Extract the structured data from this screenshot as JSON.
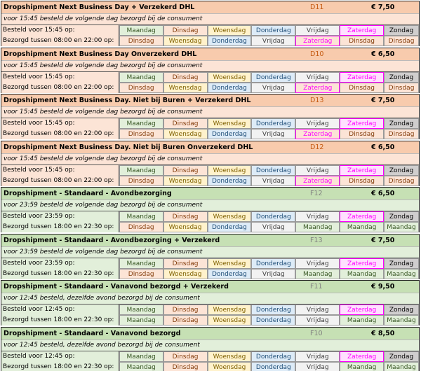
{
  "colors": {
    "orange_header": "#f8cbad",
    "orange_body": "#fce4d6",
    "green_header": "#c6e0b4",
    "green_body": "#e2efda",
    "zaterdag": "#ff00ff"
  },
  "blocks": [
    {
      "theme": "orange",
      "title": "Dropshipment Next Business Day + Verzekerd DHL",
      "code": "D11",
      "price": "€ 7,50",
      "note": "voor 15:45 besteld de volgende dag bezorgd bij de consument",
      "row1_label": "Besteld voor 15:45 op:",
      "row2_label": "Bezorgd tussen 08:00 en 22:00 op:",
      "row1": [
        "Maandag",
        "Dinsdag",
        "Woensdag",
        "Donderdag",
        "Vrijdag",
        "Zaterdag",
        "Zondag"
      ],
      "row2": [
        "Dinsdag",
        "Woensdag",
        "Donderdag",
        "Vrijdag",
        "Zaterdag",
        "Dinsdag",
        "Dinsdag"
      ]
    },
    {
      "theme": "orange",
      "title": "Dropshipment Next Business Day Onverzekerd DHL",
      "code": "D10",
      "price": "€ 6,50",
      "note": "voor 15:45 besteld de volgende dag bezorgd bij de consument",
      "row1_label": "Besteld voor 15:45 op:",
      "row2_label": "Bezorgd tussen 08:00 en 22:00 op:",
      "row1": [
        "Maandag",
        "Dinsdag",
        "Woensdag",
        "Donderdag",
        "Vrijdag",
        "Zaterdag",
        "Zondag"
      ],
      "row2": [
        "Dinsdag",
        "Woensdag",
        "Donderdag",
        "Vrijdag",
        "Zaterdag",
        "Dinsdag",
        "Dinsdag"
      ]
    },
    {
      "theme": "orange",
      "title": "Dropshipment Next Business Day. Niet bij Buren + Verzekerd DHL",
      "code": "D13",
      "price": "€ 7,50",
      "note": "voor 15:45 besteld de volgende dag bezorgd bij de consument",
      "row1_label": "Besteld voor 15:45 op:",
      "row2_label": "Bezorgd tussen 08:00 en 22:00 op:",
      "row1": [
        "Maandag",
        "Dinsdag",
        "Woensdag",
        "Donderdag",
        "Vrijdag",
        "Zaterdag",
        "Zondag"
      ],
      "row2": [
        "Dinsdag",
        "Woensdag",
        "Donderdag",
        "Vrijdag",
        "Zaterdag",
        "Dinsdag",
        "Dinsdag"
      ]
    },
    {
      "theme": "orange",
      "title": "Dropshipment Next Business Day. Niet bij Buren Onverzekerd DHL",
      "code": "D12",
      "price": "€ 6,50",
      "note": "voor 15:45 besteld de volgende dag bezorgd bij de consument",
      "row1_label": "Besteld voor 15:45 op:",
      "row2_label": "Bezorgd tussen 08:00 en 22:00 op:",
      "row1": [
        "Maandag",
        "Dinsdag",
        "Woensdag",
        "Donderdag",
        "Vrijdag",
        "Zaterdag",
        "Zondag"
      ],
      "row2": [
        "Dinsdag",
        "Woensdag",
        "Donderdag",
        "Vrijdag",
        "Zaterdag",
        "Dinsdag",
        "Dinsdag"
      ]
    },
    {
      "theme": "green",
      "title": "Dropshipment - Standaard - Avondbezorging",
      "code": "F12",
      "price": "€ 6,50",
      "note": "voor 23:59 besteld de volgende dag bezorgd bij de consument",
      "row1_label": "Besteld voor 23:59 op:",
      "row2_label": "Bezorgd tussen 18:00 en 22:30 op:",
      "row1": [
        "Maandag",
        "Dinsdag",
        "Woensdag",
        "Donderdag",
        "Vrijdag",
        "Zaterdag",
        "Zondag"
      ],
      "row2": [
        "Dinsdag",
        "Woensdag",
        "Donderdag",
        "Vrijdag",
        "Maandag",
        "Maandag",
        "Maandag"
      ]
    },
    {
      "theme": "green",
      "title": "Dropshipment - Standaard - Avondbezorging + Verzekerd",
      "code": "F13",
      "price": "€ 7,50",
      "note": "voor 23:59 besteld de volgende dag bezorgd bij de consument",
      "row1_label": "Besteld voor 23:59 op:",
      "row2_label": "Bezorgd tussen 18:00 en 22:30 op:",
      "row1": [
        "Maandag",
        "Dinsdag",
        "Woensdag",
        "Donderdag",
        "Vrijdag",
        "Zaterdag",
        "Zondag"
      ],
      "row2": [
        "Dinsdag",
        "Woensdag",
        "Donderdag",
        "Vrijdag",
        "Maandag",
        "Maandag",
        "Maandag"
      ]
    },
    {
      "theme": "green",
      "title": "Dropshipment - Standaard - Vanavond bezorgd + Verzekerd",
      "code": "F11",
      "price": "€ 9,50",
      "note": "voor 12:45 besteld, dezelfde avond bezorgd bij de consument",
      "row1_label": "Besteld voor 12:45 op:",
      "row2_label": "Bezorgd tussen 18:00 en 22:30 op:",
      "row1": [
        "Maandag",
        "Dinsdag",
        "Woensdag",
        "Donderdag",
        "Vrijdag",
        "Zaterdag",
        "Zondag"
      ],
      "row2": [
        "Maandag",
        "Dinsdag",
        "Woensdag",
        "Donderdag",
        "Vrijdag",
        "Maandag",
        "Maandag"
      ]
    },
    {
      "theme": "green",
      "title": "Dropshipment - Standaard - Vanavond bezorgd",
      "code": "F10",
      "price": "€ 8,50",
      "note": "voor 12:45 besteld, dezelfde avond bezorgd bij de consument",
      "row1_label": "Besteld voor 12:45 op:",
      "row2_label": "Bezorgd tussen 18:00 en 22:30 op:",
      "row1": [
        "Maandag",
        "Dinsdag",
        "Woensdag",
        "Donderdag",
        "Vrijdag",
        "Zaterdag",
        "Zondag"
      ],
      "row2": [
        "Maandag",
        "Dinsdag",
        "Woensdag",
        "Donderdag",
        "Vrijdag",
        "Maandag",
        "Maandag"
      ]
    }
  ]
}
